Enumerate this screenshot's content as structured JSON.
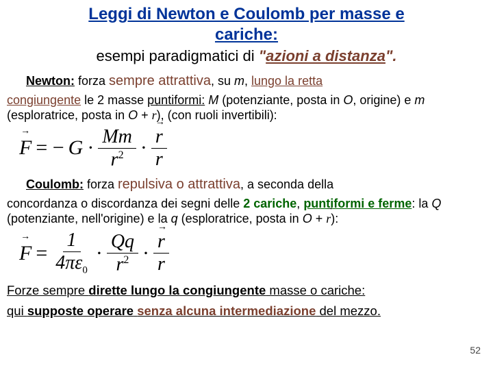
{
  "title_line1": "Leggi di Newton e Coulomb per masse e",
  "title_line2": "cariche:",
  "subtitle_plain": "esempi paradigmatici di ",
  "subtitle_quote_open": "\"",
  "subtitle_quote_text": "azioni a distanza",
  "subtitle_quote_close": "\".",
  "newton_label": "Newton:",
  "newton_text1": " forza ",
  "newton_attr": "sempre attrattiva",
  "newton_text2": ", su ",
  "newton_m": "m",
  "newton_text3": ", ",
  "newton_lungo": "lungo la retta",
  "newton_congi": "congiungente",
  "newton_text4": " le  2 masse ",
  "newton_punti": "puntiformi:",
  "newton_text5": "  ",
  "newton_M": "M",
  "newton_text6": "  (potenziante, posta in ",
  "newton_O": "O",
  "newton_text7": ", origine)   e  ",
  "newton_m2": "m",
  "newton_text8": "   (esploratrice, posta in  ",
  "newton_O2": "O",
  "newton_text9": " +  ",
  "newton_text10": "), (con ruoli invertibili):",
  "formula1": {
    "F": "F",
    "eq": "= −",
    "G": "G",
    "dot": "·",
    "num1": "Mm",
    "den1": "r",
    "sup": "2",
    "num2": "r",
    "den2": "r"
  },
  "coulomb_label": "Coulomb:",
  "coulomb_text1": " forza ",
  "coulomb_rep": "repulsiva o attrattiva",
  "coulomb_text2": ", a seconda della",
  "coulomb_text3": "concordanza o discordanza dei segni delle ",
  "coulomb_2car": "2 cariche",
  "coulomb_text4": ", ",
  "coulomb_punti": "puntiformi e ferme",
  "coulomb_text5": ": la ",
  "coulomb_Q": "Q",
  "coulomb_text6": "  (potenziante, nell'origine) e la ",
  "coulomb_q": "q",
  "coulomb_text7": " (esploratrice, posta in  ",
  "coulomb_O": "O",
  "coulomb_text8": " +  ",
  "coulomb_text9": "):",
  "formula2": {
    "F": "F",
    "eq": "=",
    "one": "1",
    "fourpie": "4πε",
    "sub0": "0",
    "dot": "·",
    "Qq": "Qq",
    "r": "r",
    "sup": "2"
  },
  "footer1a": "Forze sempre ",
  "footer1b": "dirette lungo la congiungente",
  "footer1c": " masse o cariche:",
  "footer2a": "qui ",
  "footer2b": "supposte operare",
  "footer2c": " ",
  "footer2d": "senza alcuna intermediazione",
  "footer2e": " del mezzo.",
  "page": "52",
  "colors": {
    "title": "#003399",
    "brown": "#7a3f2e",
    "green": "#006400"
  }
}
